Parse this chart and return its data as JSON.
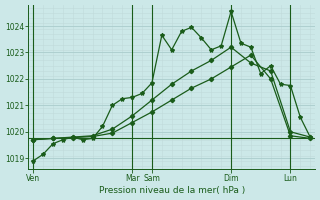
{
  "background_color": "#cce8e8",
  "grid_color_major": "#aacccc",
  "grid_color_minor": "#c0dada",
  "line_color": "#1a5c1a",
  "xlabel": "Pression niveau de la mer( hPa )",
  "ylim": [
    1018.6,
    1024.8
  ],
  "yticks": [
    1019,
    1020,
    1021,
    1022,
    1023,
    1024
  ],
  "xlim": [
    -0.5,
    28.5
  ],
  "day_positions": [
    0,
    10,
    12,
    20,
    26
  ],
  "day_labels": [
    "Ven",
    "Mar",
    "Sam",
    "Dim",
    "Lun"
  ],
  "series1": {
    "x": [
      0,
      1,
      2,
      3,
      4,
      5,
      6,
      7,
      8,
      9,
      10,
      11,
      12,
      13,
      14,
      15,
      16,
      17,
      18,
      19,
      20,
      21,
      22,
      23,
      24,
      25,
      26,
      27,
      28
    ],
    "y": [
      1018.9,
      1019.15,
      1019.55,
      1019.7,
      1019.8,
      1019.7,
      1019.75,
      1020.2,
      1021.0,
      1021.25,
      1021.3,
      1021.45,
      1021.85,
      1023.65,
      1023.1,
      1023.8,
      1023.95,
      1023.55,
      1023.1,
      1023.25,
      1024.55,
      1023.35,
      1023.2,
      1022.2,
      1022.5,
      1021.8,
      1021.75,
      1020.55,
      1019.8
    ]
  },
  "series2": {
    "x": [
      0,
      2,
      4,
      6,
      8,
      10,
      12,
      14,
      16,
      18,
      20,
      22,
      24,
      26,
      28
    ],
    "y": [
      1019.7,
      1019.75,
      1019.8,
      1019.85,
      1020.1,
      1020.6,
      1021.2,
      1021.8,
      1022.3,
      1022.7,
      1023.2,
      1022.6,
      1022.3,
      1020.0,
      1019.8
    ]
  },
  "series3": {
    "x": [
      0,
      2,
      4,
      6,
      8,
      10,
      12,
      14,
      16,
      18,
      20,
      22,
      24,
      26,
      28
    ],
    "y": [
      1019.7,
      1019.75,
      1019.78,
      1019.82,
      1019.95,
      1020.35,
      1020.75,
      1021.2,
      1021.65,
      1022.0,
      1022.45,
      1022.9,
      1022.0,
      1019.85,
      1019.75
    ]
  },
  "hline_y": 1019.78,
  "vlines_x": [
    0,
    10,
    12,
    20,
    26
  ],
  "n_vertical_grid": 28,
  "n_horiz_grid_minor": 5
}
